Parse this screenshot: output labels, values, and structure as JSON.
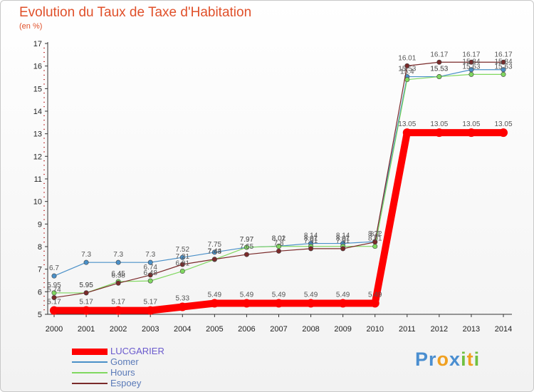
{
  "title": "Evolution du Taux de Taxe d'Habitation",
  "subtitle": "(en %)",
  "brand": "Proxiti",
  "chart_data": {
    "type": "line",
    "x": [
      "2000",
      "2001",
      "2002",
      "2003",
      "2004",
      "2005",
      "2006",
      "2007",
      "2008",
      "2009",
      "2010",
      "2011",
      "2012",
      "2013",
      "2014"
    ],
    "ylim": [
      5,
      17
    ],
    "yticks": [
      5,
      6,
      7,
      8,
      9,
      10,
      11,
      12,
      13,
      14,
      15,
      16,
      17
    ],
    "grid": false,
    "legend": "bottom-left",
    "series": [
      {
        "name": "LUCGARIER",
        "color": "#ff0000",
        "values": [
          5.17,
          5.17,
          5.17,
          5.17,
          5.33,
          5.49,
          5.49,
          5.49,
          5.49,
          5.49,
          5.49,
          13.05,
          13.05,
          13.05,
          13.05
        ],
        "labels": [
          "5.17",
          "5.17",
          "5.17",
          "5.17",
          "5.33",
          "5.49",
          "5.49",
          "5.49",
          "5.49",
          "5.49",
          "5.49",
          "13.05",
          "13.05",
          "13.05",
          "13.05"
        ]
      },
      {
        "name": "Gomer",
        "color": "#4a90c8",
        "values": [
          6.7,
          7.3,
          7.3,
          7.3,
          7.52,
          7.75,
          7.97,
          8.02,
          8.14,
          8.14,
          8.22,
          15.53,
          15.53,
          15.84,
          15.84
        ],
        "labels": [
          "6.7",
          "7.3",
          "7.3",
          "7.3",
          "7.52",
          "7.75",
          "7.97",
          "8.02",
          "8.14",
          "8.14",
          "8.22",
          "15.53",
          "15.53",
          "15.84",
          "15.84"
        ]
      },
      {
        "name": "Hours",
        "color": "#80d860",
        "values": [
          5.95,
          5.95,
          6.45,
          6.48,
          6.91,
          7.43,
          7.97,
          8.01,
          8.01,
          8.01,
          8.01,
          15.4,
          15.53,
          15.63,
          15.63
        ],
        "labels": [
          "5.95",
          "5.95",
          "6.45",
          "6.48",
          "6.91",
          "7.43",
          "7.97",
          "8.01",
          "8.01",
          "8.01",
          "8.01",
          "15.4",
          "15.53",
          "15.63",
          "15.63"
        ]
      },
      {
        "name": "Espoey",
        "color": "#7a2a2a",
        "values": [
          5.74,
          5.95,
          6.38,
          6.74,
          7.21,
          7.44,
          7.65,
          7.8,
          7.91,
          7.91,
          8.2,
          16.01,
          16.17,
          16.17,
          16.17
        ],
        "labels": [
          "5.74",
          "5.95",
          "6.38",
          "6.74",
          "7.21",
          "7.44",
          "7.65",
          "7.8",
          "7.91",
          "7.91",
          "8.2",
          "16.01",
          "16.17",
          "16.17",
          "16.17"
        ]
      }
    ]
  }
}
